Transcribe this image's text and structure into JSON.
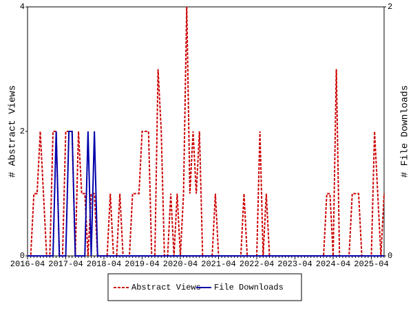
{
  "chart_data": {
    "type": "line",
    "categories": [
      "2016-04",
      "2016-05",
      "2016-06",
      "2016-07",
      "2016-08",
      "2016-09",
      "2016-10",
      "2016-11",
      "2016-12",
      "2017-01",
      "2017-02",
      "2017-03",
      "2017-04",
      "2017-05",
      "2017-06",
      "2017-07",
      "2017-08",
      "2017-09",
      "2017-10",
      "2017-11",
      "2017-12",
      "2018-01",
      "2018-02",
      "2018-03",
      "2018-04",
      "2018-05",
      "2018-06",
      "2018-07",
      "2018-08",
      "2018-09",
      "2018-10",
      "2018-11",
      "2018-12",
      "2019-01",
      "2019-02",
      "2019-03",
      "2019-04",
      "2019-05",
      "2019-06",
      "2019-07",
      "2019-08",
      "2019-09",
      "2019-10",
      "2019-11",
      "2019-12",
      "2020-01",
      "2020-02",
      "2020-03",
      "2020-04",
      "2020-05",
      "2020-06",
      "2020-07",
      "2020-08",
      "2020-09",
      "2020-10",
      "2020-11",
      "2020-12",
      "2021-01",
      "2021-02",
      "2021-03",
      "2021-04",
      "2021-05",
      "2021-06",
      "2021-07",
      "2021-08",
      "2021-09",
      "2021-10",
      "2021-11",
      "2021-12",
      "2022-01",
      "2022-02",
      "2022-03",
      "2022-04",
      "2022-05",
      "2022-06",
      "2022-07",
      "2022-08",
      "2022-09",
      "2022-10",
      "2022-11",
      "2022-12",
      "2023-01",
      "2023-02",
      "2023-03",
      "2023-04",
      "2023-05",
      "2023-06",
      "2023-07",
      "2023-08",
      "2023-09",
      "2023-10",
      "2023-11",
      "2023-12",
      "2024-01",
      "2024-02",
      "2024-03",
      "2024-04",
      "2024-05",
      "2024-06",
      "2024-07",
      "2024-08",
      "2024-09",
      "2024-10",
      "2024-11",
      "2024-12",
      "2025-01",
      "2025-02",
      "2025-03",
      "2025-04",
      "2025-05",
      "2025-06",
      "2025-07",
      "2025-08"
    ],
    "xticks": [
      "2016-04",
      "2017-04",
      "2018-04",
      "2019-04",
      "2020-04",
      "2021-04",
      "2022-04",
      "2023-04",
      "2024-04",
      "2025-04"
    ],
    "y_label": "# Abstract Views",
    "y2_label": "# File Downloads",
    "ylim": [
      0,
      4
    ],
    "yticks": [
      0,
      2,
      4
    ],
    "y2lim": [
      0,
      2
    ],
    "y2ticks": [
      0,
      2
    ],
    "series": [
      {
        "name": "Abstract Views",
        "color": "#cc0000",
        "dashed": true,
        "values": [
          0,
          0,
          1,
          1,
          2,
          1,
          0,
          0,
          2,
          2,
          0,
          0,
          2,
          2,
          2,
          0,
          2,
          1,
          1,
          0,
          1,
          1,
          0,
          0,
          0,
          0,
          1,
          0,
          0,
          1,
          0,
          0,
          0,
          1,
          1,
          1,
          2,
          2,
          2,
          0,
          0,
          3,
          2,
          0,
          0,
          1,
          0,
          1,
          0,
          1,
          4,
          1,
          2,
          1,
          2,
          0,
          0,
          0,
          0,
          1,
          0,
          0,
          0,
          0,
          0,
          0,
          0,
          0,
          1,
          0,
          0,
          0,
          0,
          2,
          0,
          1,
          0,
          0,
          0,
          0,
          0,
          0,
          0,
          0,
          0,
          0,
          0,
          0,
          0,
          0,
          0,
          0,
          0,
          0,
          1,
          1,
          0,
          3,
          0,
          0,
          0,
          0,
          1,
          1,
          1,
          0,
          0,
          0,
          0,
          2,
          1,
          0,
          1
        ]
      },
      {
        "name": "File Downloads",
        "color": "#0000aa",
        "axis": "y2",
        "values": [
          0,
          0,
          0,
          0,
          0,
          0,
          0,
          0,
          0,
          1,
          0,
          0,
          0,
          1,
          1,
          0,
          0,
          0,
          0,
          1,
          0,
          1,
          0,
          0,
          0,
          0,
          0,
          0,
          0,
          0,
          0,
          0,
          0,
          0,
          0,
          0,
          0,
          0,
          0,
          0,
          0,
          0,
          0,
          0,
          0,
          0,
          0,
          0,
          0,
          0,
          0,
          0,
          0,
          0,
          0,
          0,
          0,
          0,
          0,
          0,
          0,
          0,
          0,
          0,
          0,
          0,
          0,
          0,
          0,
          0,
          0,
          0,
          0,
          0,
          0,
          0,
          0,
          0,
          0,
          0,
          0,
          0,
          0,
          0,
          0,
          0,
          0,
          0,
          0,
          0,
          0,
          0,
          0,
          0,
          0,
          0,
          0,
          0,
          0,
          0,
          0,
          0,
          0,
          0,
          0,
          0,
          0,
          0,
          0,
          0,
          0,
          0,
          0
        ]
      }
    ]
  }
}
